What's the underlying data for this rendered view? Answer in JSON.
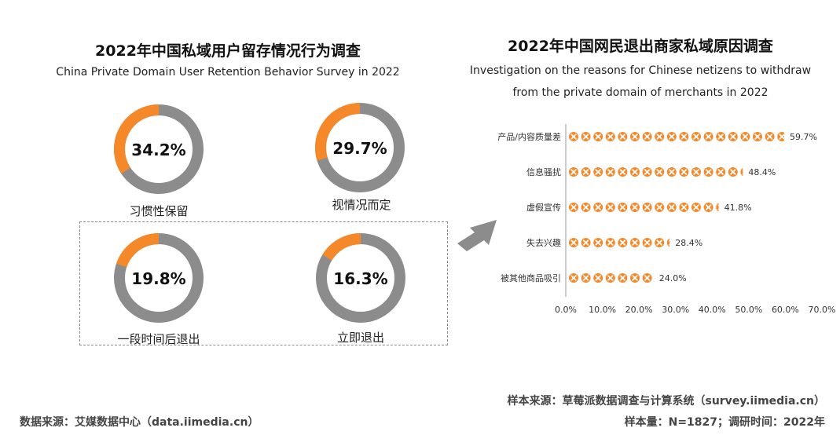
{
  "left_panel": {
    "title": "2022年中国私域用户留存情况行为调查",
    "subtitle": "China Private Domain User Retention Behavior Survey in 2022"
  },
  "right_panel": {
    "title": "2022年中国网民退出商家私域原因调查",
    "subtitle_line1": "Investigation on the reasons for Chinese netizens to withdraw",
    "subtitle_line2": "from the private domain of merchants in 2022"
  },
  "colors": {
    "accent": "#F5892A",
    "ring_gray": "#8C8C8C",
    "axis": "#999999"
  },
  "footer": {
    "sample_source": "样本来源：草莓派数据调查与计算系统（survey.iimedia.cn）",
    "sample_size": "样本量：N=1827；调研时间：2022年",
    "data_source": "数据来源：艾媒数据中心（data.iimedia.cn）"
  },
  "chart_data": [
    {
      "type": "pie",
      "title": "2022年中国私域用户留存情况行为调查",
      "subtitle": "China Private Domain User Retention Behavior Survey in 2022",
      "items": [
        {
          "label": "习惯性保留",
          "value": 34.2,
          "value_label": "34.2%"
        },
        {
          "label": "视情况而定",
          "value": 29.7,
          "value_label": "29.7%"
        },
        {
          "label": "一段时间后退出",
          "value": 19.8,
          "value_label": "19.8%"
        },
        {
          "label": "立即退出",
          "value": 16.3,
          "value_label": "16.3%"
        }
      ]
    },
    {
      "type": "bar",
      "orientation": "horizontal",
      "title": "2022年中国网民退出商家私域原因调查",
      "categories": [
        "产品/内容质量差",
        "信息骚扰",
        "虚假宣传",
        "失去兴趣",
        "被其他商品吸引"
      ],
      "values": [
        59.7,
        48.4,
        41.8,
        28.4,
        24.0
      ],
      "value_labels": [
        "59.7%",
        "48.4%",
        "41.8%",
        "28.4%",
        "24.0%"
      ],
      "xlim": [
        0,
        70
      ],
      "xticks": [
        "0.0%",
        "10.0%",
        "20.0%",
        "30.0%",
        "40.0%",
        "50.0%",
        "60.0%",
        "70.0%"
      ],
      "grid": false,
      "marker": "circle-x"
    }
  ]
}
